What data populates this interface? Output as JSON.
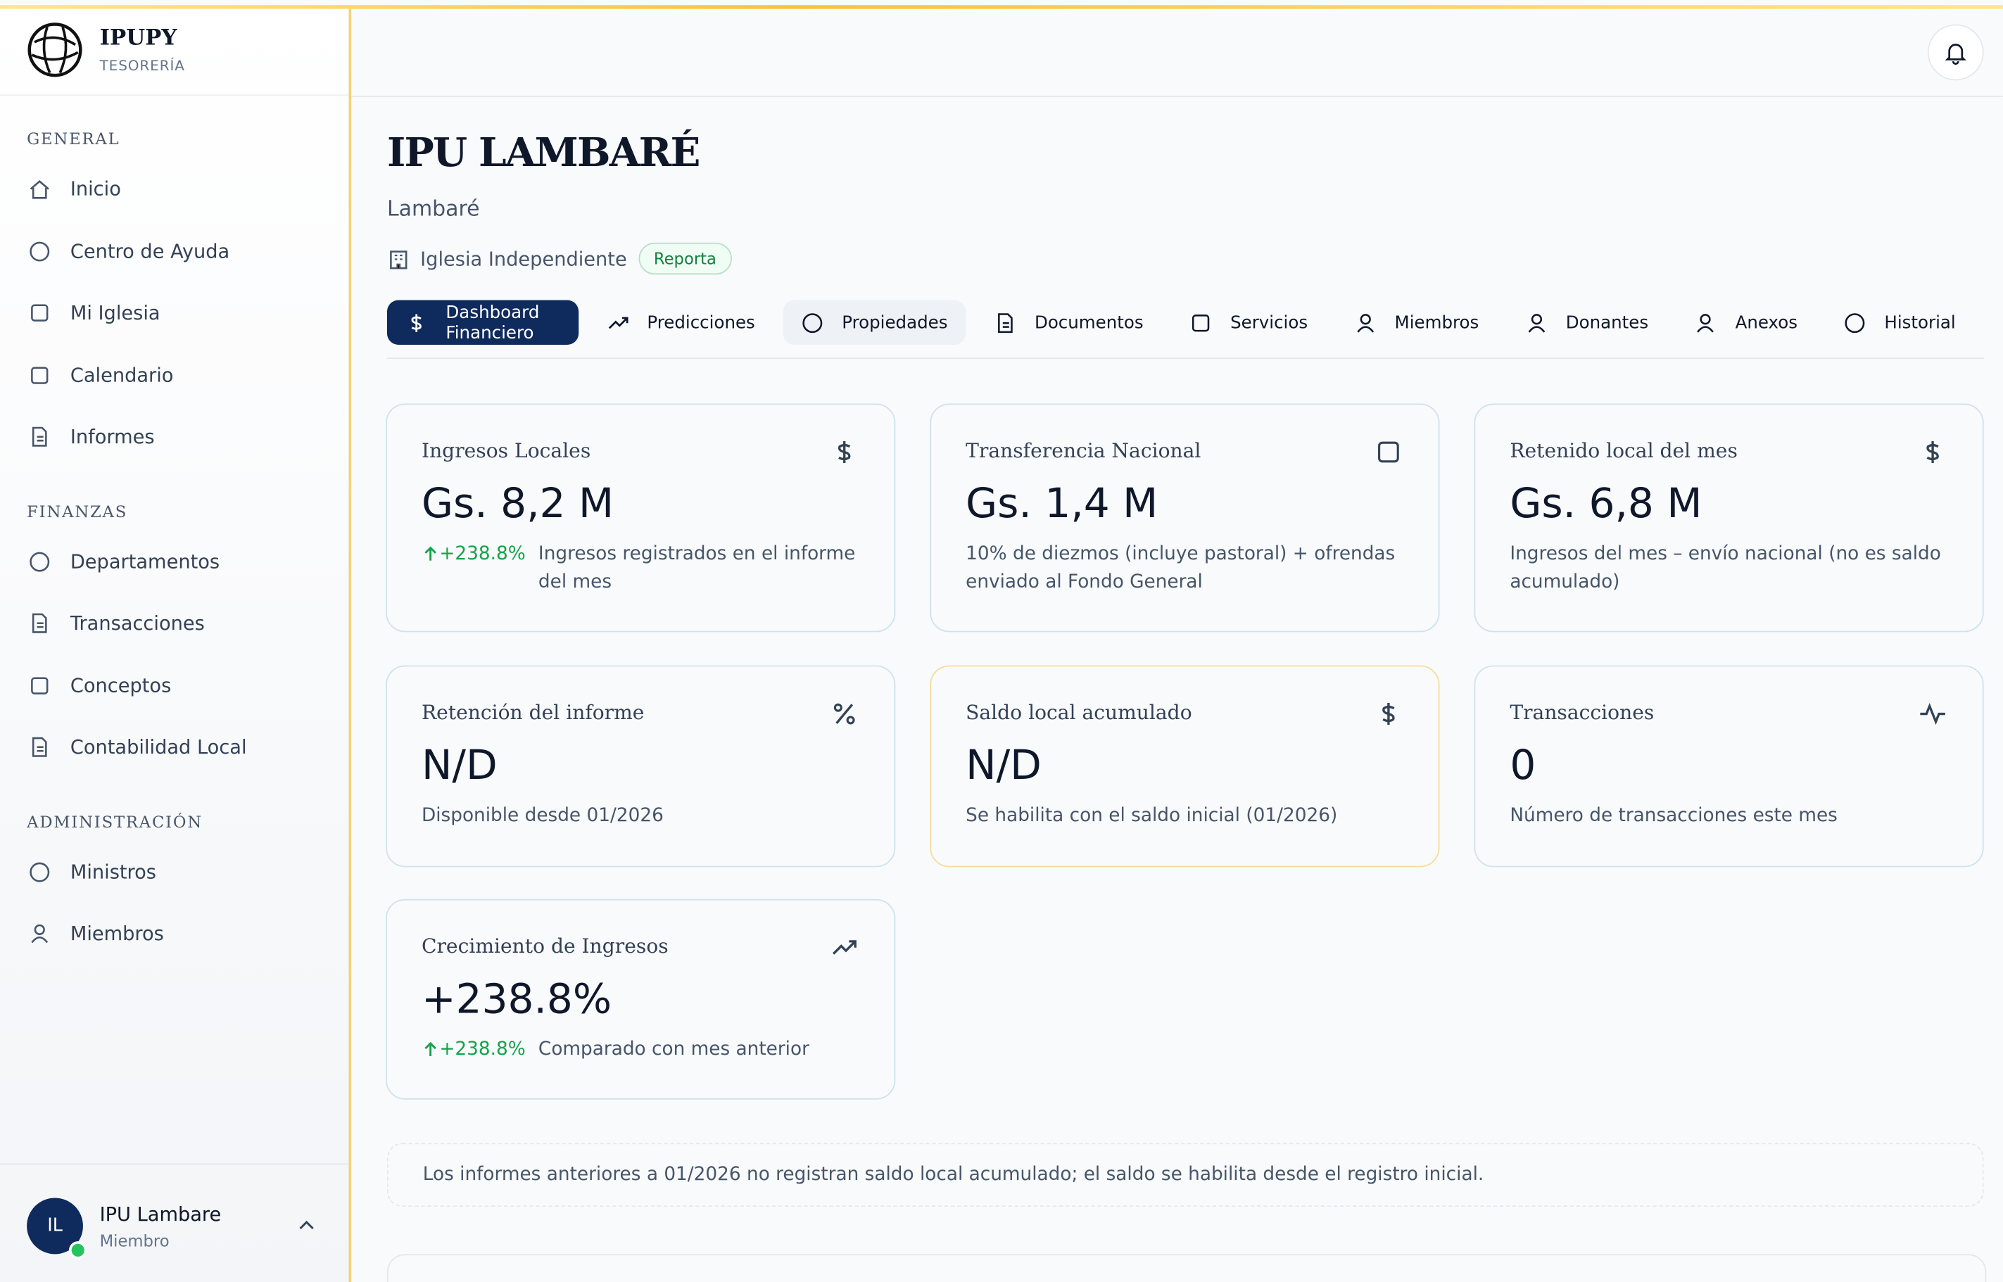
{
  "brand": {
    "name": "IPUPY",
    "subtitle": "TESORERÍA"
  },
  "nav": [
    {
      "section": "GENERAL",
      "items": [
        "Inicio",
        "Centro de Ayuda",
        "Mi Iglesia",
        "Calendario",
        "Informes"
      ]
    },
    {
      "section": "FINANZAS",
      "items": [
        "Departamentos",
        "Transacciones",
        "Conceptos",
        "Contabilidad Local"
      ]
    },
    {
      "section": "ADMINISTRACIÓN",
      "items": [
        "Ministros",
        "Miembros"
      ]
    }
  ],
  "user": {
    "initials": "IL",
    "name": "IPU Lambare",
    "role": "Miembro"
  },
  "church": {
    "name": "IPU LAMBARÉ",
    "city": "Lambaré",
    "type": "Iglesia Independiente",
    "badge": "Reporta"
  },
  "tabs": [
    "Dashboard Financiero",
    "Predicciones",
    "Propiedades",
    "Documentos",
    "Servicios",
    "Miembros",
    "Donantes",
    "Anexos",
    "Historial"
  ],
  "cards": [
    {
      "title": "Ingresos Locales",
      "value": "Gs. 8,2 M",
      "change": "+238.8%",
      "description": "Ingresos registrados en el informe del mes"
    },
    {
      "title": "Transferencia Nacional",
      "value": "Gs. 1,4 M",
      "description": "10% de diezmos (incluye pastoral) + ofrendas enviado al Fondo General"
    },
    {
      "title": "Retenido local del mes",
      "value": "Gs. 6,8 M",
      "description": "Ingresos del mes – envío nacional (no es saldo acumulado)"
    },
    {
      "title": "Retención del informe",
      "value": "N/D",
      "description": "Disponible desde 01/2026"
    },
    {
      "title": "Saldo local acumulado",
      "value": "N/D",
      "description": "Se habilita con el saldo inicial (01/2026)"
    },
    {
      "title": "Transacciones",
      "value": "0",
      "description": "Número de transacciones este mes"
    },
    {
      "title": "Crecimiento de Ingresos",
      "value": "+238.8%",
      "change": "+238.8%",
      "description": "Comparado con mes anterior"
    }
  ],
  "notice": "Los informes anteriores a 01/2026 no registran saldo local acumulado; el saldo se habilita desde el registro inicial."
}
